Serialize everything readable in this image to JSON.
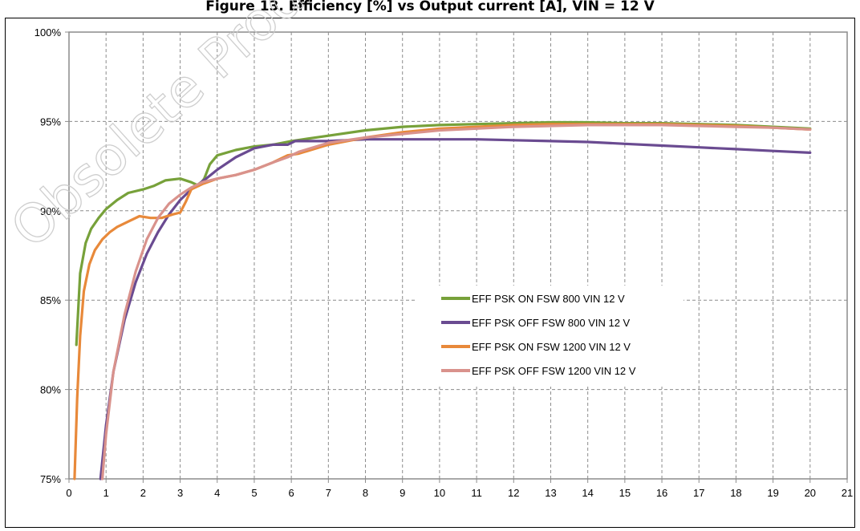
{
  "header": {
    "title": "Figure 13. Efficiency [%] vs Output current [A], VIN = 12 V"
  },
  "watermark": {
    "text": "Obsolete Product(s)"
  },
  "chart_data": {
    "type": "line",
    "title": "",
    "xlabel": "",
    "ylabel": "",
    "xlim": [
      0,
      21
    ],
    "ylim": [
      75,
      100
    ],
    "x_ticks": [
      "0",
      "1",
      "2",
      "3",
      "4",
      "5",
      "6",
      "7",
      "8",
      "9",
      "10",
      "11",
      "12",
      "13",
      "14",
      "15",
      "16",
      "17",
      "18",
      "19",
      "20",
      "21"
    ],
    "y_ticks": [
      "75%",
      "80%",
      "85%",
      "90%",
      "95%",
      "100%"
    ],
    "grid": true,
    "legend_position": "center-right",
    "series": [
      {
        "name": "EFF PSK ON FSW 800 VIN 12 V",
        "color": "#77a13a",
        "x": [
          0.2,
          0.3,
          0.45,
          0.6,
          0.8,
          1.0,
          1.3,
          1.6,
          2.0,
          2.3,
          2.6,
          3.0,
          3.3,
          3.5,
          3.65,
          3.8,
          4.0,
          4.5,
          5.0,
          5.5,
          6.0,
          7.0,
          8.0,
          9.0,
          10.0,
          11.0,
          12.0,
          13.0,
          14.0,
          15.0,
          16.0,
          17.0,
          18.0,
          19.0,
          20.0
        ],
        "y": [
          82.5,
          86.5,
          88.2,
          89.0,
          89.6,
          90.1,
          90.6,
          91.0,
          91.2,
          91.4,
          91.7,
          91.8,
          91.6,
          91.4,
          91.8,
          92.6,
          93.1,
          93.4,
          93.6,
          93.7,
          93.9,
          94.2,
          94.5,
          94.7,
          94.8,
          94.85,
          94.9,
          94.95,
          94.95,
          94.9,
          94.9,
          94.85,
          94.8,
          94.7,
          94.6
        ]
      },
      {
        "name": "EFF PSK OFF FSW 800 VIN 12 V",
        "color": "#6a4b91",
        "x": [
          0.85,
          1.0,
          1.2,
          1.5,
          1.8,
          2.1,
          2.4,
          2.7,
          3.0,
          3.3,
          3.7,
          4.0,
          4.5,
          5.0,
          5.5,
          5.9,
          6.1,
          6.5,
          7.0,
          8.0,
          9.0,
          10.0,
          11.0,
          12.0,
          13.0,
          14.0,
          15.0,
          16.0,
          17.0,
          18.0,
          19.0,
          20.0
        ],
        "y": [
          75,
          78.0,
          81.0,
          83.9,
          86.0,
          87.6,
          88.8,
          89.8,
          90.6,
          91.2,
          91.8,
          92.3,
          93.0,
          93.5,
          93.7,
          93.7,
          93.9,
          93.9,
          93.9,
          94.0,
          94.0,
          94.0,
          94.0,
          93.95,
          93.9,
          93.85,
          93.75,
          93.65,
          93.55,
          93.45,
          93.35,
          93.25
        ]
      },
      {
        "name": "EFF PSK ON FSW 1200 VIN 12 V",
        "color": "#e8893a",
        "x": [
          0.15,
          0.22,
          0.3,
          0.4,
          0.55,
          0.7,
          0.9,
          1.1,
          1.3,
          1.6,
          1.9,
          2.2,
          2.5,
          2.8,
          3.0,
          3.15,
          3.3,
          3.6,
          4.0,
          4.5,
          5.0,
          5.5,
          5.9,
          6.2,
          7.0,
          8.0,
          9.0,
          10.0,
          11.0,
          12.0,
          13.0,
          14.0,
          15.0,
          16.0,
          17.0,
          18.0,
          19.0,
          20.0
        ],
        "y": [
          75,
          79.5,
          83.0,
          85.5,
          87.0,
          87.8,
          88.4,
          88.8,
          89.1,
          89.4,
          89.7,
          89.6,
          89.6,
          89.8,
          89.9,
          90.5,
          91.2,
          91.5,
          91.8,
          92.0,
          92.3,
          92.7,
          93.1,
          93.2,
          93.7,
          94.1,
          94.4,
          94.6,
          94.7,
          94.8,
          94.85,
          94.85,
          94.85,
          94.85,
          94.8,
          94.75,
          94.65,
          94.55
        ]
      },
      {
        "name": "EFF PSK OFF FSW 1200 VIN 12 V",
        "color": "#d9928c",
        "x": [
          0.9,
          1.0,
          1.2,
          1.5,
          1.8,
          2.1,
          2.4,
          2.7,
          3.0,
          3.3,
          3.6,
          4.0,
          4.5,
          5.0,
          5.5,
          5.9,
          6.2,
          7.0,
          8.0,
          9.0,
          10.0,
          11.0,
          12.0,
          13.0,
          14.0,
          15.0,
          16.0,
          17.0,
          18.0,
          19.0,
          20.0
        ],
        "y": [
          75,
          77.5,
          81.0,
          84.2,
          86.6,
          88.4,
          89.6,
          90.4,
          90.9,
          91.3,
          91.6,
          91.8,
          92.0,
          92.3,
          92.7,
          93.0,
          93.3,
          93.8,
          94.1,
          94.3,
          94.5,
          94.6,
          94.7,
          94.75,
          94.8,
          94.8,
          94.8,
          94.75,
          94.7,
          94.65,
          94.55
        ]
      }
    ]
  }
}
